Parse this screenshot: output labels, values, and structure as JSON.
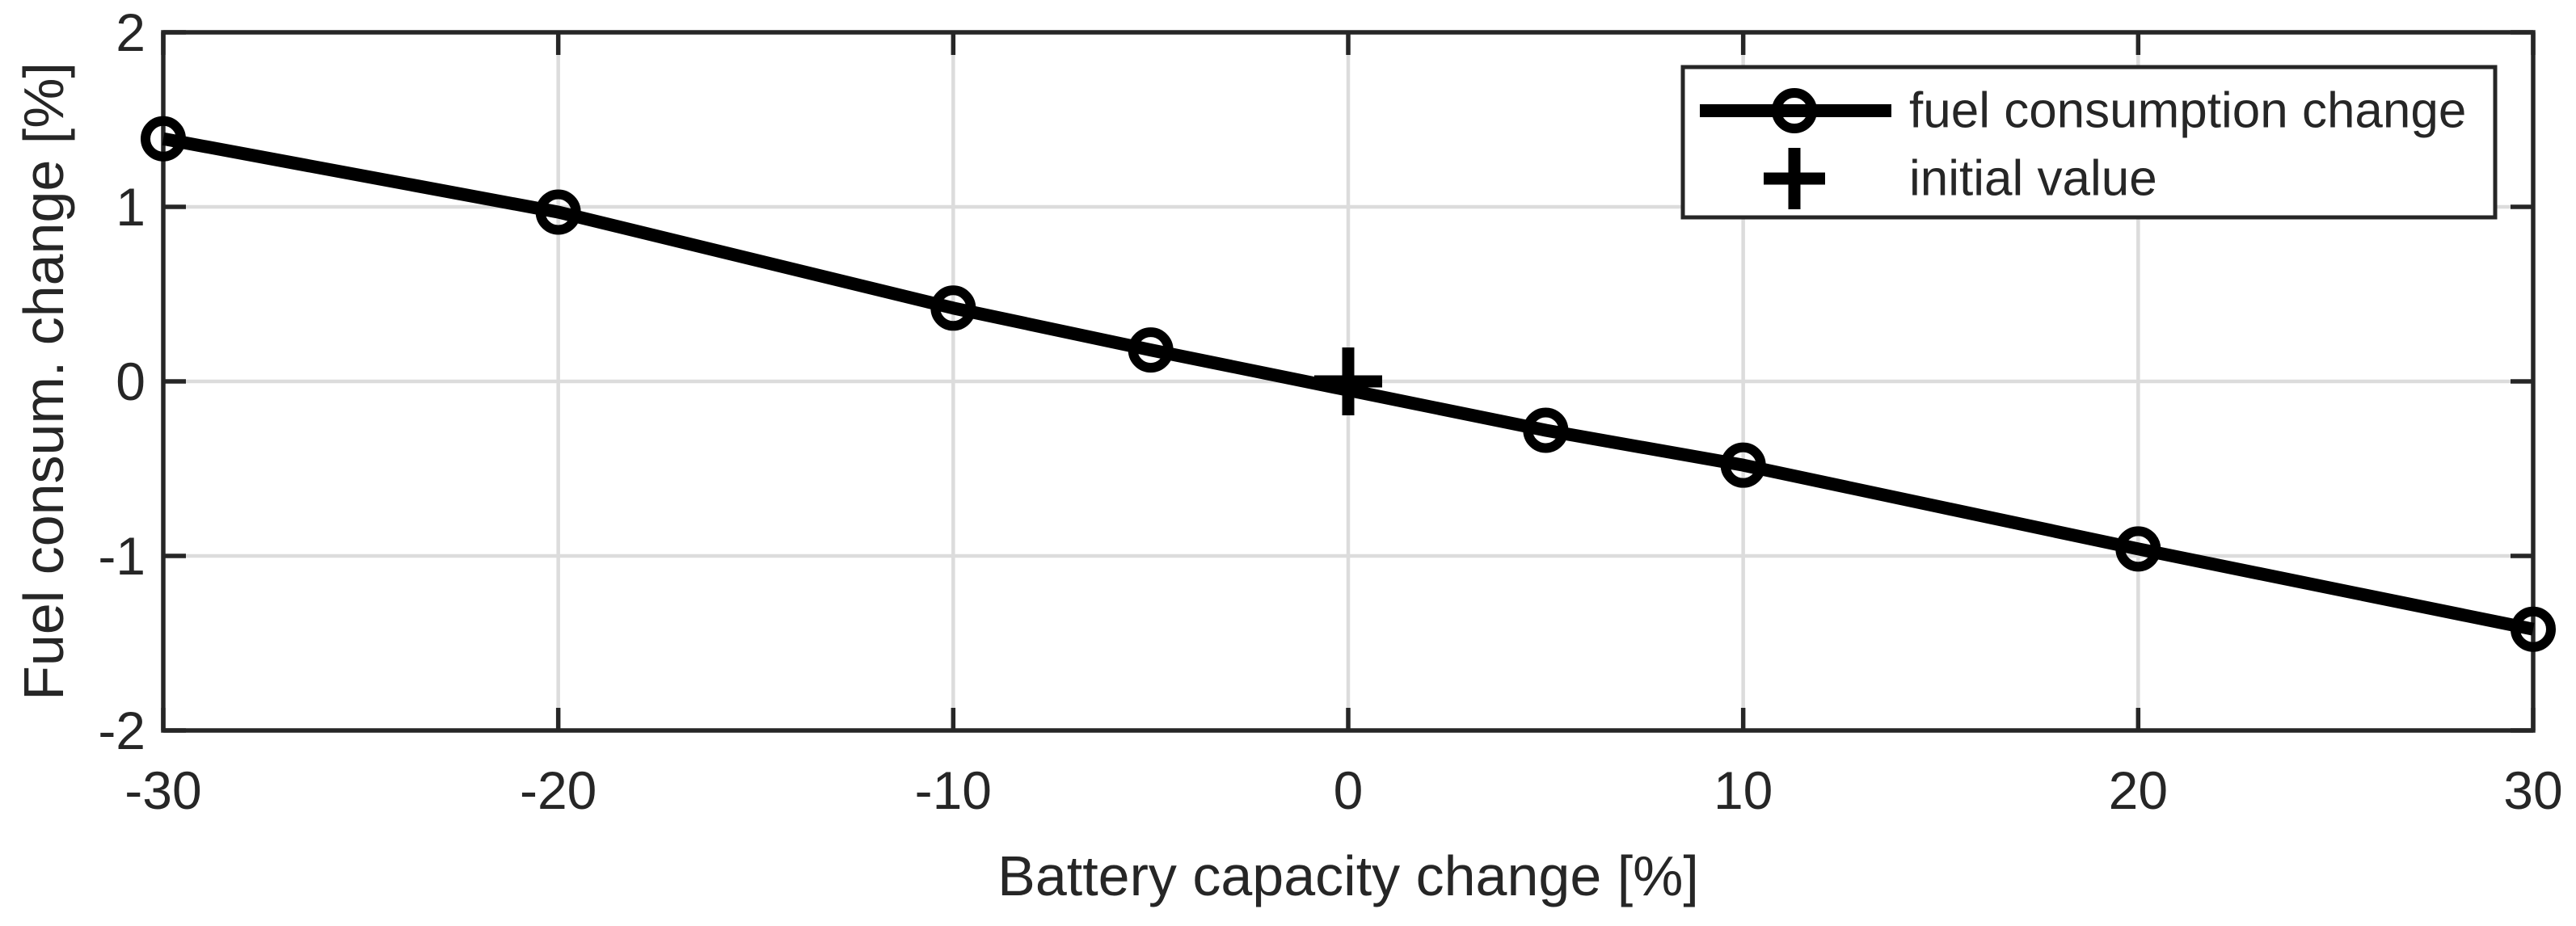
{
  "chart_data": {
    "type": "line",
    "title": "",
    "xlabel": "Battery capacity change [%]",
    "ylabel": "Fuel consum. change [%]",
    "xlim": [
      -30,
      30
    ],
    "ylim": [
      -2,
      2
    ],
    "xticks": [
      -30,
      -20,
      -10,
      0,
      10,
      20,
      30
    ],
    "yticks": [
      -2,
      -1,
      0,
      1,
      2
    ],
    "grid": true,
    "legend_position": "top-right",
    "series": [
      {
        "name": "fuel consumption change",
        "marker": "circle",
        "line": true,
        "x": [
          -30,
          -20,
          -10,
          -5,
          5,
          10,
          20,
          30
        ],
        "y": [
          1.39,
          0.97,
          0.42,
          0.18,
          -0.28,
          -0.48,
          -0.96,
          -1.42
        ]
      },
      {
        "name": "initial value",
        "marker": "plus",
        "line": false,
        "x": [
          0
        ],
        "y": [
          0
        ]
      }
    ],
    "legend": [
      {
        "label": "fuel consumption change",
        "marker": "circle-on-line"
      },
      {
        "label": "initial value",
        "marker": "plus"
      }
    ],
    "colors": {
      "line": "#000000",
      "axis": "#262626",
      "grid": "#dcdcdc",
      "background": "#ffffff"
    }
  }
}
